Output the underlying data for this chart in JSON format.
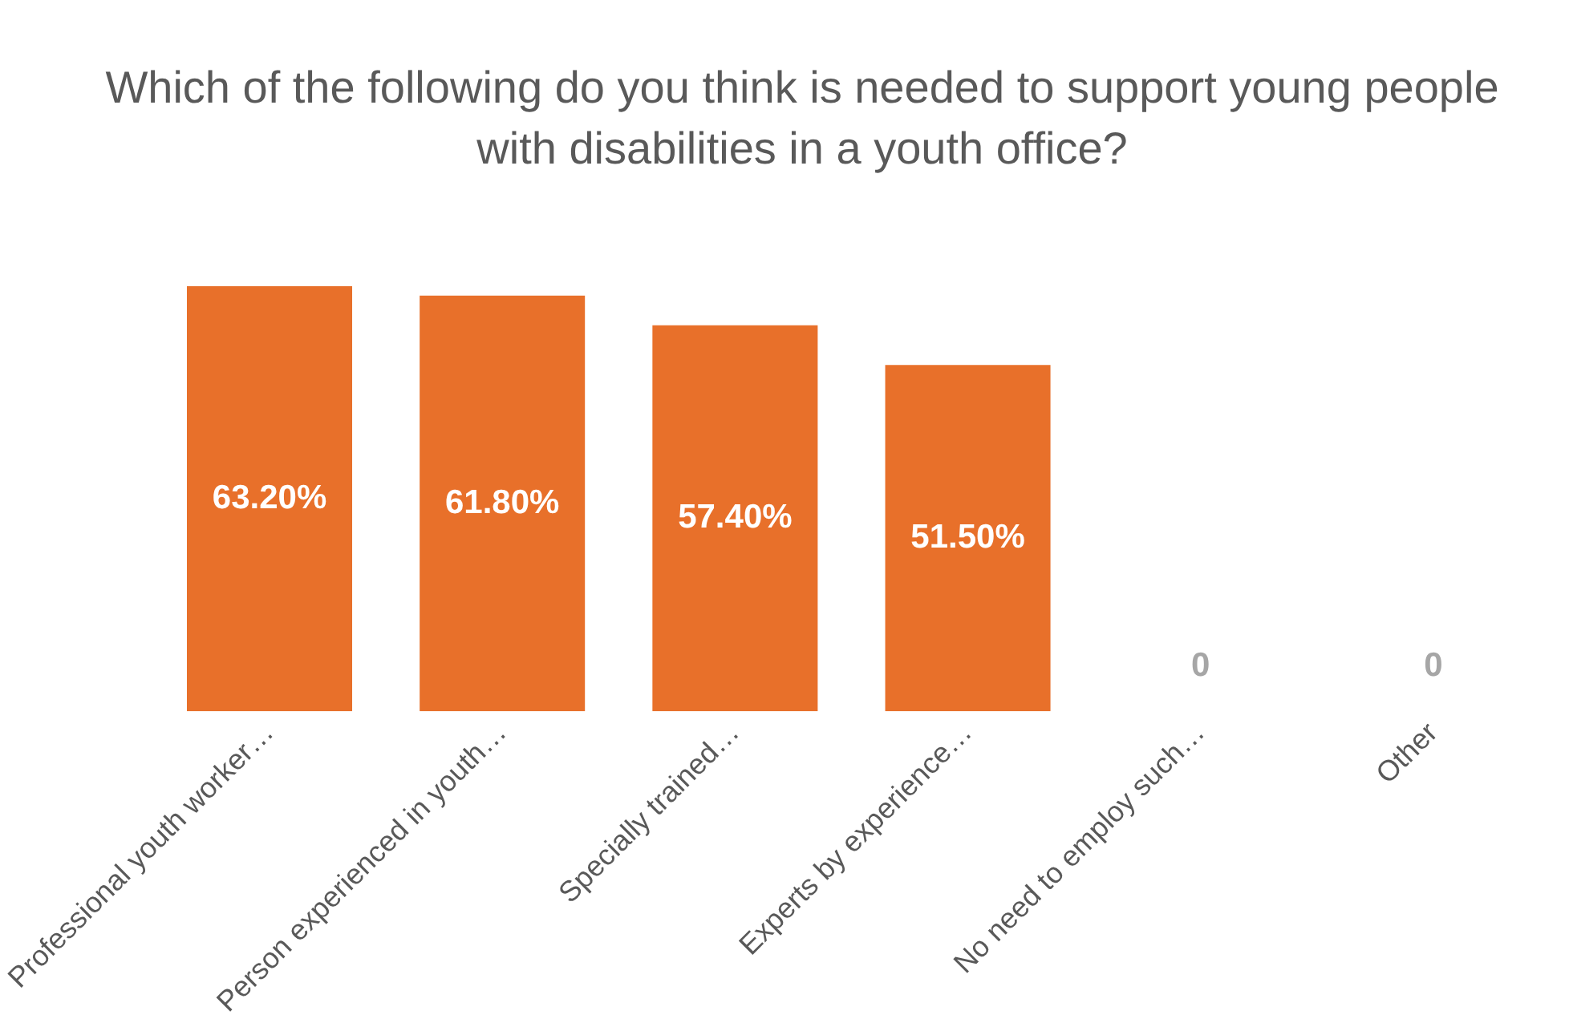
{
  "chart_data": {
    "type": "bar",
    "title": "Which of the following do you think is needed to support young people with disabilities in a youth office?",
    "categories": [
      "Professional youth worker…",
      "Person experienced in youth…",
      "Specially trained…",
      "Experts by experience…",
      "No need to employ such…",
      "Other"
    ],
    "values": [
      63.2,
      61.8,
      57.4,
      51.5,
      0,
      0
    ],
    "value_labels": [
      "63.20%",
      "61.80%",
      "57.40%",
      "51.50%",
      "0",
      "0"
    ],
    "color": "#e8702a",
    "grid": false,
    "legend": false
  }
}
